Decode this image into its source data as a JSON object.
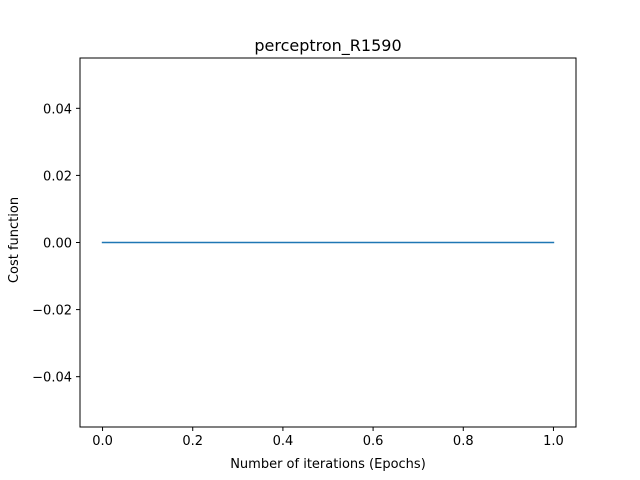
{
  "chart_data": {
    "type": "line",
    "title": "perceptron_R1590",
    "xlabel": "Number of iterations (Epochs)",
    "ylabel": "Cost function",
    "xlim": [
      -0.05,
      1.05
    ],
    "ylim": [
      -0.055,
      0.055
    ],
    "x_ticks": [
      0.0,
      0.2,
      0.4,
      0.6,
      0.8,
      1.0
    ],
    "x_tick_labels": [
      "0.0",
      "0.2",
      "0.4",
      "0.6",
      "0.8",
      "1.0"
    ],
    "y_ticks": [
      -0.04,
      -0.02,
      0.0,
      0.02,
      0.04
    ],
    "y_tick_labels": [
      "−0.04",
      "−0.02",
      "0.00",
      "0.02",
      "0.04"
    ],
    "grid": false,
    "series": [
      {
        "x": [
          0,
          1
        ],
        "values": [
          0.0,
          0.0
        ],
        "color": "#1f77b4"
      }
    ]
  }
}
